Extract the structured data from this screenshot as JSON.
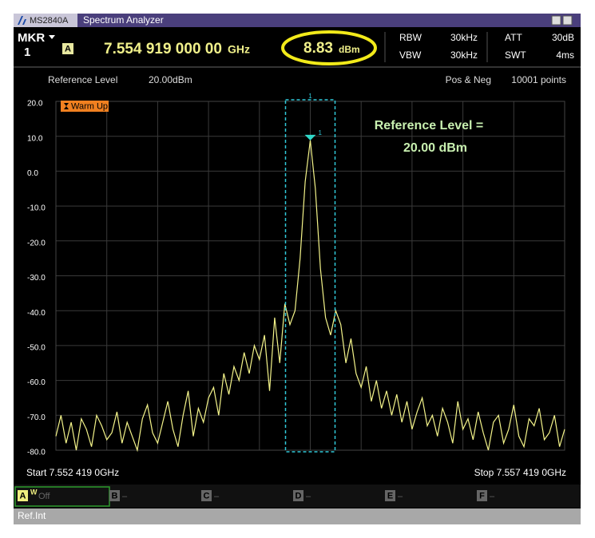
{
  "window": {
    "brand": "MS2840A",
    "title": "Spectrum Analyzer"
  },
  "header": {
    "mkr_label": "MKR",
    "mkr_number": "1",
    "trace": "A",
    "marker_frequency": "7.554 919 000 00",
    "marker_frequency_unit": "GHz",
    "marker_level_unit": "dBm",
    "rbw_label": "RBW",
    "rbw": "30kHz",
    "vbw_label": "VBW",
    "vbw": "30kHz",
    "att_label": "ATT",
    "att": "30dB",
    "swt_label": "SWT",
    "swt": "4ms"
  },
  "chart_data": {
    "type": "line",
    "ref_level_label": "Reference Level",
    "ref_level": "20.00dBm",
    "detection": "Pos & Neg",
    "points": "10001 points",
    "status": "Warm Up",
    "annotation": [
      "Reference Level =",
      "20.00 dBm"
    ],
    "marker": {
      "label": "1",
      "value": 8.83
    },
    "start": "Start 7.552 419 0GHz",
    "stop": "Stop 7.557 419 0GHz",
    "ylim": [
      -80,
      20
    ],
    "yticks": [
      {
        "value": 20,
        "label": "20.0"
      },
      {
        "value": 10,
        "label": "10.0"
      },
      {
        "value": 0,
        "label": "0.0"
      },
      {
        "value": -10,
        "label": "-10.0"
      },
      {
        "value": -20,
        "label": "-20.0"
      },
      {
        "value": -30,
        "label": "-30.0"
      },
      {
        "value": -40,
        "label": "-40.0"
      },
      {
        "value": -50,
        "label": "-50.0"
      },
      {
        "value": -60,
        "label": "-60.0"
      },
      {
        "value": -70,
        "label": "-70.0"
      },
      {
        "value": -80,
        "label": "-80.0"
      }
    ],
    "grid": true,
    "color": "#f4f48a",
    "values": [
      -76,
      -70,
      -78,
      -72,
      -80,
      -71,
      -74,
      -79,
      -70,
      -73,
      -77,
      -75,
      -69,
      -78,
      -72,
      -76,
      -80,
      -71,
      -67,
      -75,
      -78,
      -72,
      -66,
      -74,
      -79,
      -70,
      -63,
      -76,
      -68,
      -72,
      -65,
      -62,
      -70,
      -58,
      -64,
      -56,
      -60,
      -52,
      -58,
      -50,
      -54,
      -47,
      -63,
      -42,
      -55,
      -38,
      -44,
      -40,
      -25,
      -3,
      8.83,
      -5,
      -28,
      -42,
      -47,
      -40,
      -44,
      -55,
      -48,
      -58,
      -62,
      -56,
      -66,
      -60,
      -68,
      -63,
      -70,
      -64,
      -72,
      -66,
      -74,
      -69,
      -65,
      -73,
      -70,
      -76,
      -68,
      -72,
      -78,
      -66,
      -74,
      -71,
      -77,
      -69,
      -75,
      -80,
      -72,
      -70,
      -78,
      -74,
      -67,
      -76,
      -79,
      -71,
      -73,
      -68,
      -77,
      -75,
      -70,
      -79,
      -74
    ]
  },
  "traces": [
    {
      "letter": "A",
      "state": "W",
      "mode": "Off"
    },
    {
      "letter": "B",
      "mode": "–"
    },
    {
      "letter": "C",
      "mode": "–"
    },
    {
      "letter": "D",
      "mode": "–"
    },
    {
      "letter": "E",
      "mode": "–"
    },
    {
      "letter": "F",
      "mode": "–"
    }
  ],
  "status_bar": "Ref.Int"
}
